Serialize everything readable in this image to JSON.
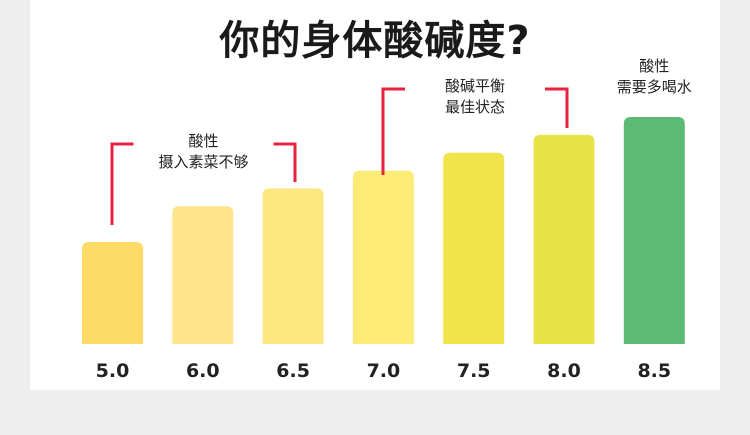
{
  "title": "你的身体酸碱度?",
  "colors": {
    "background": "#eeeeee",
    "panel": "#ffffff",
    "bracket": "#e8233f",
    "text": "#222222"
  },
  "chart_data": {
    "type": "bar",
    "title": "你的身体酸碱度?",
    "xlabel": "",
    "ylabel": "",
    "categories": [
      "5.0",
      "6.0",
      "6.5",
      "7.0",
      "7.5",
      "8.0",
      "8.5"
    ],
    "values": [
      5.0,
      6.0,
      6.5,
      7.0,
      7.5,
      8.0,
      8.5
    ],
    "bar_colors": [
      "#fedb66",
      "#fee48a",
      "#fde880",
      "#fdeb78",
      "#f1e44a",
      "#e9e34a",
      "#5bba74"
    ],
    "grid": false,
    "legend": "none",
    "annotations": [
      {
        "lines": [
          "酸性",
          "摄入素菜不够"
        ],
        "spans": [
          "5.0",
          "6.5"
        ]
      },
      {
        "lines": [
          "酸碱平衡",
          "最佳状态"
        ],
        "spans": [
          "7.0",
          "8.0"
        ]
      },
      {
        "lines": [
          "酸性",
          "需要多喝水"
        ],
        "spans": [
          "8.5"
        ]
      }
    ]
  }
}
